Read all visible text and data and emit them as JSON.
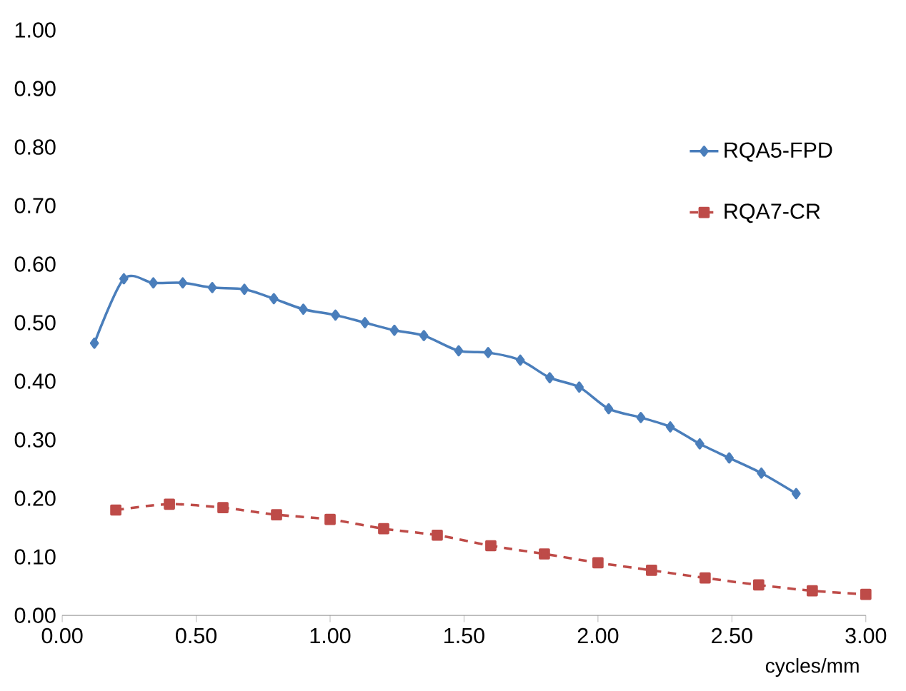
{
  "chart_data": {
    "type": "line",
    "xlabel": "cycles/mm",
    "xlim": [
      0,
      3
    ],
    "xticks": [
      {
        "value": 0,
        "label": "0.00"
      },
      {
        "value": 0.5,
        "label": "0.50"
      },
      {
        "value": 1,
        "label": "1.00"
      },
      {
        "value": 1.5,
        "label": "1.50"
      },
      {
        "value": 2,
        "label": "2.00"
      },
      {
        "value": 2.5,
        "label": "2.50"
      },
      {
        "value": 3,
        "label": "3.00"
      }
    ],
    "ylim": [
      0,
      1
    ],
    "yticks": [
      {
        "value": 0,
        "label": "0.00"
      },
      {
        "value": 0.1,
        "label": "0.10"
      },
      {
        "value": 0.2,
        "label": "0.20"
      },
      {
        "value": 0.3,
        "label": "0.30"
      },
      {
        "value": 0.4,
        "label": "0.40"
      },
      {
        "value": 0.5,
        "label": "0.50"
      },
      {
        "value": 0.6,
        "label": "0.60"
      },
      {
        "value": 0.7,
        "label": "0.70"
      },
      {
        "value": 0.8,
        "label": "0.80"
      },
      {
        "value": 0.9,
        "label": "0.90"
      },
      {
        "value": 1,
        "label": "1.00"
      }
    ],
    "grid": false,
    "legend": "top right",
    "series": [
      {
        "name": "RQA5-FPD",
        "color": "#4a7ebb",
        "marker": "diamond",
        "line_style": "solid",
        "x": [
          0.12,
          0.23,
          0.34,
          0.45,
          0.56,
          0.68,
          0.79,
          0.9,
          1.02,
          1.13,
          1.24,
          1.35,
          1.48,
          1.59,
          1.71,
          1.82,
          1.93,
          2.04,
          2.16,
          2.27,
          2.38,
          2.49,
          2.61,
          2.74
        ],
        "values": [
          0.465,
          0.575,
          0.568,
          0.568,
          0.56,
          0.557,
          0.541,
          0.523,
          0.513,
          0.5,
          0.487,
          0.478,
          0.452,
          0.449,
          0.436,
          0.406,
          0.39,
          0.353,
          0.338,
          0.322,
          0.293,
          0.269,
          0.243,
          0.208
        ]
      },
      {
        "name": "RQA7-CR",
        "color": "#be4b48",
        "marker": "square",
        "line_style": "dashed",
        "x": [
          0.2,
          0.4,
          0.6,
          0.8,
          1.0,
          1.2,
          1.4,
          1.6,
          1.8,
          2.0,
          2.2,
          2.4,
          2.6,
          2.8,
          3.0
        ],
        "values": [
          0.18,
          0.19,
          0.184,
          0.172,
          0.164,
          0.148,
          0.137,
          0.119,
          0.105,
          0.09,
          0.077,
          0.064,
          0.052,
          0.042,
          0.036
        ]
      }
    ]
  }
}
